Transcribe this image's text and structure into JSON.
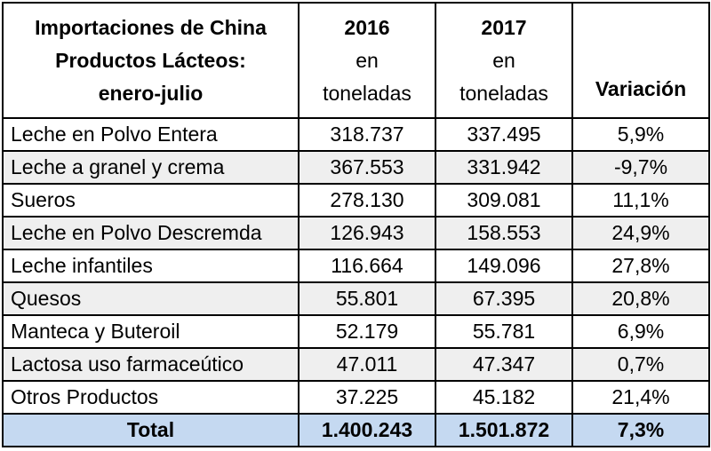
{
  "chart_data": {
    "type": "table",
    "header": {
      "title_lines": [
        "Importaciones de China",
        "Productos Lácteos:",
        "enero-julio"
      ],
      "col_2016": {
        "year": "2016",
        "unit_1": "en",
        "unit_2": "toneladas"
      },
      "col_2017": {
        "year": "2017",
        "unit_1": "en",
        "unit_2": "toneladas"
      },
      "col_var": "Variación"
    },
    "rows": [
      {
        "product": "Leche en Polvo Entera",
        "v2016": "318.737",
        "v2017": "337.495",
        "var": "5,9%"
      },
      {
        "product": "Leche a granel y crema",
        "v2016": "367.553",
        "v2017": "331.942",
        "var": "-9,7%"
      },
      {
        "product": "Sueros",
        "v2016": "278.130",
        "v2017": "309.081",
        "var": "11,1%"
      },
      {
        "product": "Leche en Polvo Descremda",
        "v2016": "126.943",
        "v2017": "158.553",
        "var": "24,9%"
      },
      {
        "product": "Leche infantiles",
        "v2016": "116.664",
        "v2017": "149.096",
        "var": "27,8%"
      },
      {
        "product": "Quesos",
        "v2016": "55.801",
        "v2017": "67.395",
        "var": "20,8%"
      },
      {
        "product": "Manteca y Buteroil",
        "v2016": "52.179",
        "v2017": "55.781",
        "var": "6,9%"
      },
      {
        "product": "Lactosa uso farmaceútico",
        "v2016": "47.011",
        "v2017": "47.347",
        "var": "0,7%"
      },
      {
        "product": "Otros Productos",
        "v2016": "37.225",
        "v2017": "45.182",
        "var": "21,4%"
      }
    ],
    "total": {
      "label": "Total",
      "v2016": "1.400.243",
      "v2017": "1.501.872",
      "var": "7,3%"
    },
    "colors": {
      "total_row_bg": "#c5d9f1",
      "stripe_bg": "#efefef",
      "border": "#000000"
    }
  }
}
